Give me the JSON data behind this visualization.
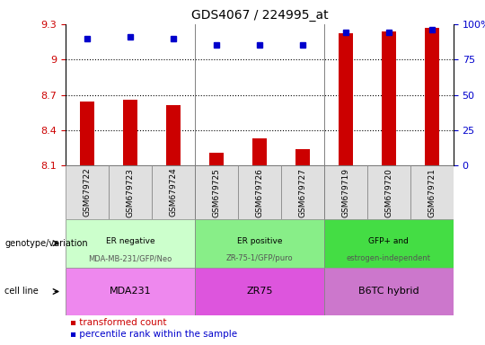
{
  "title": "GDS4067 / 224995_at",
  "samples": [
    "GSM679722",
    "GSM679723",
    "GSM679724",
    "GSM679725",
    "GSM679726",
    "GSM679727",
    "GSM679719",
    "GSM679720",
    "GSM679721"
  ],
  "bar_values": [
    8.64,
    8.66,
    8.61,
    8.21,
    8.33,
    8.24,
    9.22,
    9.24,
    9.27
  ],
  "percentile_values": [
    90,
    91,
    90,
    85,
    85,
    85,
    94,
    94,
    96
  ],
  "ylim_left": [
    8.1,
    9.3
  ],
  "ylim_right": [
    0,
    100
  ],
  "yticks_left": [
    8.1,
    8.4,
    8.7,
    9.0,
    9.3
  ],
  "ytick_labels_left": [
    "8.1",
    "8.4",
    "8.7",
    "9",
    "9.3"
  ],
  "yticks_right": [
    0,
    25,
    50,
    75,
    100
  ],
  "ytick_labels_right": [
    "0",
    "25",
    "50",
    "75",
    "100%"
  ],
  "bar_color": "#cc0000",
  "dot_color": "#0000cc",
  "groups": [
    {
      "label": "ER negative\nMDA-MB-231/GFP/Neo",
      "start": 0,
      "end": 3,
      "color": "#ccffcc"
    },
    {
      "label": "ER positive\nZR-75-1/GFP/puro",
      "start": 3,
      "end": 6,
      "color": "#88ee88"
    },
    {
      "label": "GFP+ and\nestrogen-independent",
      "start": 6,
      "end": 9,
      "color": "#44dd44"
    }
  ],
  "cell_lines": [
    {
      "label": "MDA231",
      "start": 0,
      "end": 3,
      "color": "#ee88ee"
    },
    {
      "label": "ZR75",
      "start": 3,
      "end": 6,
      "color": "#dd55dd"
    },
    {
      "label": "B6TC hybrid",
      "start": 6,
      "end": 9,
      "color": "#cc77cc"
    }
  ],
  "legend_items": [
    {
      "label": "transformed count",
      "color": "#cc0000"
    },
    {
      "label": "percentile rank within the sample",
      "color": "#0000cc"
    }
  ],
  "genotype_label": "genotype/variation",
  "cell_line_label": "cell line",
  "grid_yticks": [
    8.4,
    8.7,
    9.0
  ],
  "group_separators": [
    2.5,
    5.5
  ],
  "bar_width": 0.35
}
